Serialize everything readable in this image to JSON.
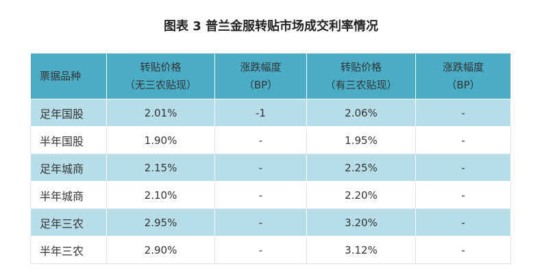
{
  "title": "图表 3  普兰金服转贴市场成交利率情况",
  "table": {
    "header": [
      [
        "票据品种"
      ],
      [
        "转贴价格",
        "（无三农贴现）"
      ],
      [
        "涨跌幅度",
        "（BP）"
      ],
      [
        "转贴价格",
        "（有三农贴现）"
      ],
      [
        "涨跌幅度",
        "（BP）"
      ]
    ],
    "rows": [
      [
        "足年国股",
        "2.01%",
        "-1",
        "2.06%",
        "-"
      ],
      [
        "半年国股",
        "1.90%",
        "-",
        "1.95%",
        "-"
      ],
      [
        "足年城商",
        "2.15%",
        "-",
        "2.25%",
        "-"
      ],
      [
        "半年城商",
        "2.10%",
        "-",
        "2.20%",
        "-"
      ],
      [
        "足年三农",
        "2.95%",
        "-",
        "3.20%",
        "-"
      ],
      [
        "半年三农",
        "2.90%",
        "-",
        "3.12%",
        "-"
      ]
    ]
  }
}
